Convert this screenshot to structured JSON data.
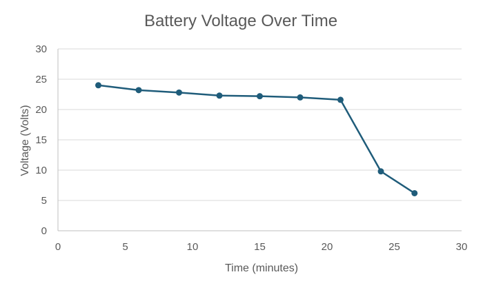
{
  "chart_data": {
    "type": "scatter",
    "mode": "lines+markers",
    "title": "Battery Voltage Over Time",
    "xlabel": "Time (minutes)",
    "ylabel": "Voltage (Volts)",
    "xlim": [
      0,
      30
    ],
    "ylim": [
      0,
      30
    ],
    "xticks": [
      0,
      5,
      10,
      15,
      20,
      25,
      30
    ],
    "yticks": [
      0,
      5,
      10,
      15,
      20,
      25,
      30
    ],
    "grid": "horizontal",
    "legend": "none",
    "series": [
      {
        "x": [
          3,
          6,
          9,
          12,
          15,
          18,
          21,
          24,
          26.5
        ],
        "y": [
          24.0,
          23.2,
          22.8,
          22.3,
          22.2,
          22.0,
          21.6,
          9.8,
          6.2
        ],
        "color": "#1f5c7a"
      }
    ],
    "colors": {
      "grid": "#d9d9d9",
      "axis": "#bfbfbf",
      "text": "#595959"
    }
  }
}
